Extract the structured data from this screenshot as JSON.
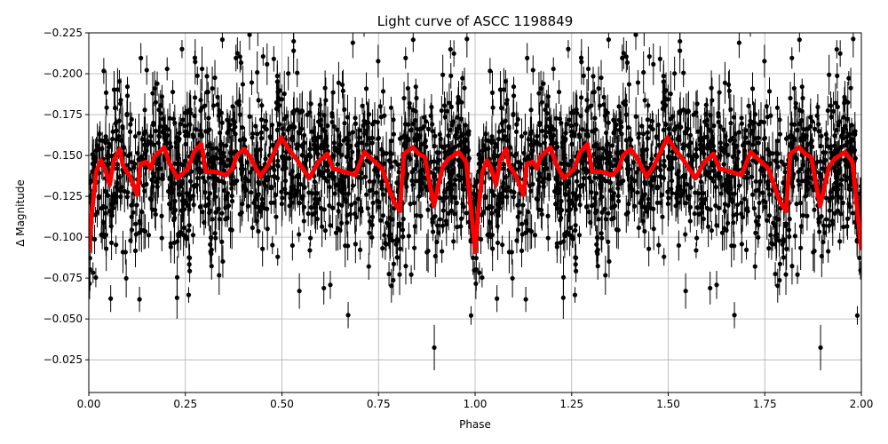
{
  "chart_data": {
    "type": "scatter",
    "title": "Light curve of ASCC 1198849",
    "xlabel": "Phase",
    "ylabel": "Δ Magnitude",
    "xlim": [
      0,
      2
    ],
    "ylim": [
      -0.225,
      -0.005
    ],
    "y_inverted": true,
    "grid": true,
    "x_ticks": [
      "0.00",
      "0.25",
      "0.50",
      "0.75",
      "1.00",
      "1.25",
      "1.50",
      "1.75",
      "2.00"
    ],
    "x_tick_values": [
      0,
      0.25,
      0.5,
      0.75,
      1.0,
      1.25,
      1.5,
      1.75,
      2.0
    ],
    "y_ticks": [
      "−0.225",
      "−0.200",
      "−0.175",
      "−0.150",
      "−0.125",
      "−0.100",
      "−0.075",
      "−0.050",
      "−0.025"
    ],
    "y_tick_values": [
      -0.225,
      -0.2,
      -0.175,
      -0.15,
      -0.125,
      -0.1,
      -0.075,
      -0.05,
      -0.025
    ],
    "series": [
      {
        "kind": "errorbar-points",
        "color": "#000000"
      },
      {
        "kind": "line",
        "color": "#ff0000",
        "x": [
          0,
          0.008,
          0.019,
          0.031,
          0.042,
          0.054,
          0.065,
          0.08,
          0.088,
          0.107,
          0.125,
          0.134,
          0.149,
          0.161,
          0.169,
          0.195,
          0.211,
          0.23,
          0.257,
          0.272,
          0.291,
          0.303,
          0.326,
          0.356,
          0.372,
          0.383,
          0.402,
          0.418,
          0.444,
          0.464,
          0.498,
          0.517,
          0.54,
          0.571,
          0.594,
          0.617,
          0.632,
          0.663,
          0.69,
          0.713,
          0.732,
          0.759,
          0.778,
          0.789,
          0.805,
          0.816,
          0.839,
          0.854,
          0.87,
          0.893,
          0.916,
          0.931,
          0.958,
          0.977,
          1.0
        ],
        "y": [
          -0.091,
          -0.115,
          -0.14,
          -0.147,
          -0.142,
          -0.132,
          -0.147,
          -0.154,
          -0.144,
          -0.137,
          -0.126,
          -0.145,
          -0.146,
          -0.142,
          -0.149,
          -0.155,
          -0.144,
          -0.136,
          -0.142,
          -0.152,
          -0.157,
          -0.14,
          -0.14,
          -0.138,
          -0.142,
          -0.15,
          -0.154,
          -0.149,
          -0.137,
          -0.144,
          -0.161,
          -0.154,
          -0.147,
          -0.136,
          -0.146,
          -0.151,
          -0.142,
          -0.14,
          -0.138,
          -0.152,
          -0.148,
          -0.142,
          -0.129,
          -0.122,
          -0.116,
          -0.151,
          -0.155,
          -0.151,
          -0.149,
          -0.119,
          -0.143,
          -0.148,
          -0.152,
          -0.146,
          -0.092
        ],
        "repeats_over_phase": 2
      }
    ]
  }
}
